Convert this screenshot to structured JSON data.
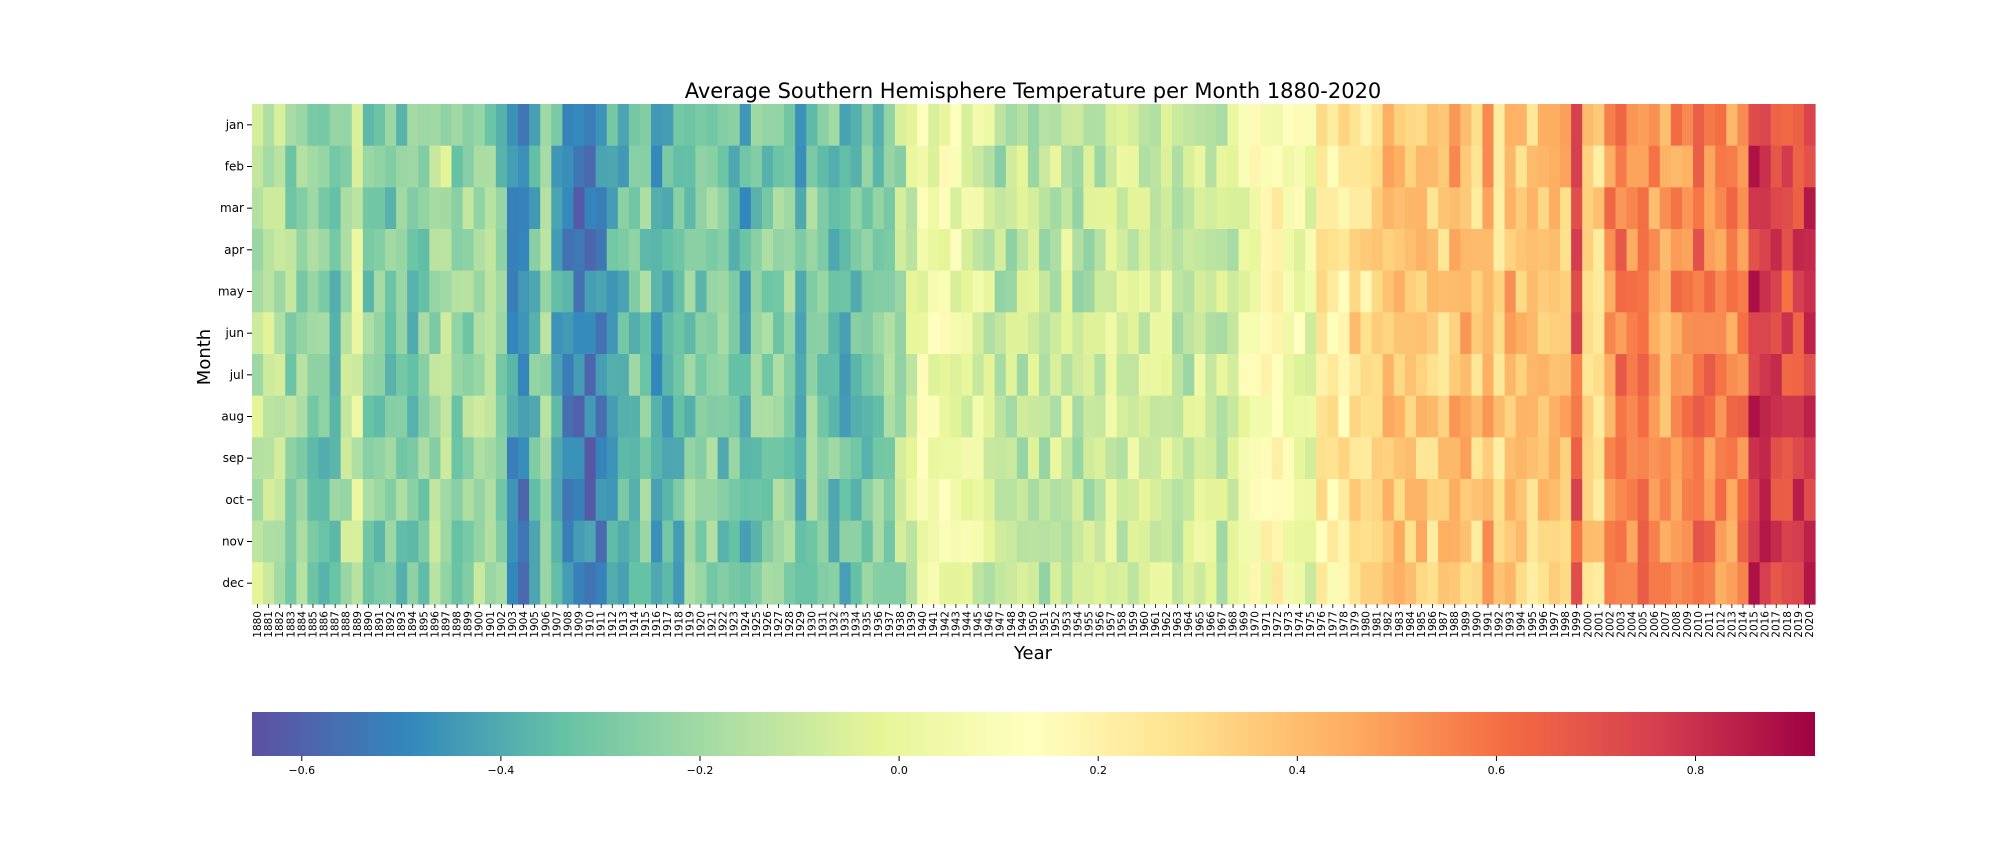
{
  "chart_data": {
    "type": "heatmap",
    "title": "Average Southern Hemisphere Temperature per Month 1880-2020",
    "xlabel": "Year",
    "ylabel": "Month",
    "x_start": 1880,
    "x_end": 2020,
    "months": [
      "jan",
      "feb",
      "mar",
      "apr",
      "may",
      "jun",
      "jul",
      "aug",
      "sep",
      "oct",
      "nov",
      "dec"
    ],
    "colorscale": "Spectral_r",
    "value_range": [
      -0.65,
      0.92
    ],
    "colorbar_ticks": [
      -0.6,
      -0.4,
      -0.2,
      0.0,
      0.2,
      0.4,
      0.6,
      0.8
    ],
    "colorbar_labels": [
      "−0.6",
      "−0.4",
      "−0.2",
      "0.0",
      "0.2",
      "0.4",
      "0.6",
      "0.8"
    ],
    "annual_mean": [
      -0.12,
      -0.14,
      -0.16,
      -0.22,
      -0.24,
      -0.26,
      -0.3,
      -0.32,
      -0.16,
      -0.08,
      -0.28,
      -0.28,
      -0.3,
      -0.28,
      -0.3,
      -0.26,
      -0.2,
      -0.14,
      -0.26,
      -0.22,
      -0.18,
      -0.22,
      -0.28,
      -0.42,
      -0.5,
      -0.34,
      -0.24,
      -0.38,
      -0.46,
      -0.52,
      -0.52,
      -0.5,
      -0.36,
      -0.34,
      -0.28,
      -0.26,
      -0.4,
      -0.36,
      -0.34,
      -0.28,
      -0.3,
      -0.26,
      -0.3,
      -0.32,
      -0.4,
      -0.28,
      -0.28,
      -0.26,
      -0.26,
      -0.38,
      -0.26,
      -0.28,
      -0.3,
      -0.34,
      -0.3,
      -0.28,
      -0.28,
      -0.24,
      -0.16,
      -0.06,
      0.06,
      0.04,
      0.08,
      0.04,
      0.0,
      -0.02,
      -0.08,
      -0.16,
      -0.14,
      -0.12,
      -0.12,
      -0.18,
      -0.1,
      -0.08,
      -0.16,
      -0.14,
      -0.12,
      -0.04,
      -0.08,
      -0.06,
      -0.08,
      -0.06,
      -0.08,
      -0.1,
      -0.12,
      -0.06,
      -0.06,
      -0.1,
      -0.08,
      0.0,
      0.1,
      0.12,
      0.14,
      0.08,
      0.06,
      0.0,
      0.24,
      0.2,
      0.24,
      0.32,
      0.28,
      0.34,
      0.4,
      0.38,
      0.38,
      0.36,
      0.32,
      0.34,
      0.44,
      0.4,
      0.32,
      0.44,
      0.32,
      0.42,
      0.34,
      0.32,
      0.36,
      0.36,
      0.38,
      0.66,
      0.3,
      0.32,
      0.52,
      0.58,
      0.54,
      0.56,
      0.5,
      0.48,
      0.52,
      0.52,
      0.64,
      0.56,
      0.52,
      0.52,
      0.58,
      0.8,
      0.78,
      0.72,
      0.7,
      0.74,
      0.76
    ]
  }
}
